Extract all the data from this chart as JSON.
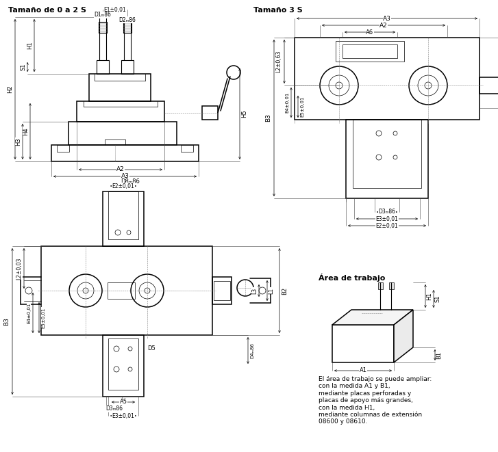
{
  "title_tl": "Tamaño de 0 a 2 S",
  "title_tr": "Tamaño 3 S",
  "title_br": "Área de trabajo",
  "bg_color": "#ffffff",
  "line_color": "#000000",
  "text_color": "#000000",
  "footer_text": "El área de trabajo se puede ampliar:\ncon la medida A1 y B1,\nmediante placas perforadas y\nplacas de apoyo más grandes,\ncon la medida H1,\nmediante columnas de extensión\n08600 y 08610."
}
